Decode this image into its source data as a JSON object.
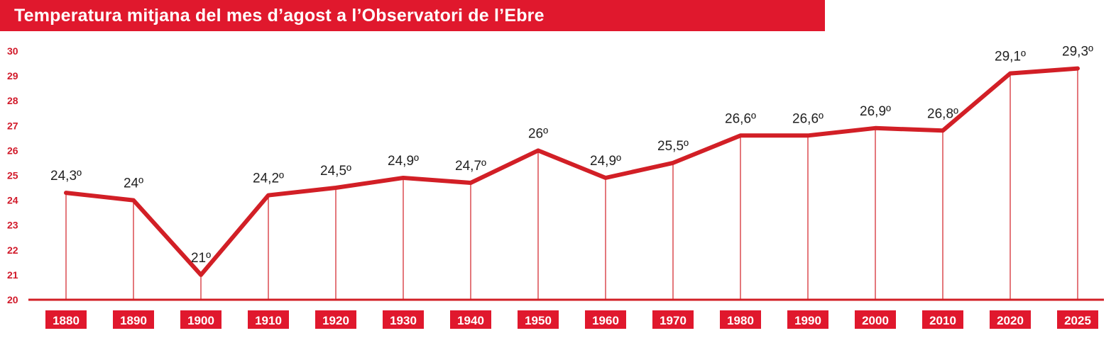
{
  "title": "Temperatura mitjana del mes d’agost a l’Observatori de l’Ebre",
  "colors": {
    "accent": "#e0182d",
    "line": "#d21f26",
    "text": "#222222",
    "ytick": "#d11a2a"
  },
  "chart_data": {
    "type": "line",
    "title": "Temperatura mitjana del mes d’agost a l’Observatori de l’Ebre",
    "xlabel": "",
    "ylabel": "",
    "ylim": [
      20,
      30
    ],
    "yticks": [
      "20",
      "21",
      "22",
      "23",
      "24",
      "25",
      "26",
      "27",
      "28",
      "29",
      "30"
    ],
    "grid": false,
    "legend": "none",
    "categories": [
      "1880",
      "1890",
      "1900",
      "1910",
      "1920",
      "1930",
      "1940",
      "1950",
      "1960",
      "1970",
      "1980",
      "1990",
      "2000",
      "2010",
      "2020",
      "2025"
    ],
    "values": [
      24.3,
      24.0,
      21.0,
      24.2,
      24.5,
      24.9,
      24.7,
      26.0,
      24.9,
      25.5,
      26.6,
      26.6,
      26.9,
      26.8,
      29.1,
      29.3
    ],
    "labels": [
      "24,3º",
      "24º",
      "21º",
      "24,2º",
      "24,5º",
      "24,9º",
      "24,7º",
      "26º",
      "24,9º",
      "25,5º",
      "26,6º",
      "26,6º",
      "26,9º",
      "26,8º",
      "29,1º",
      "29,3º"
    ]
  }
}
